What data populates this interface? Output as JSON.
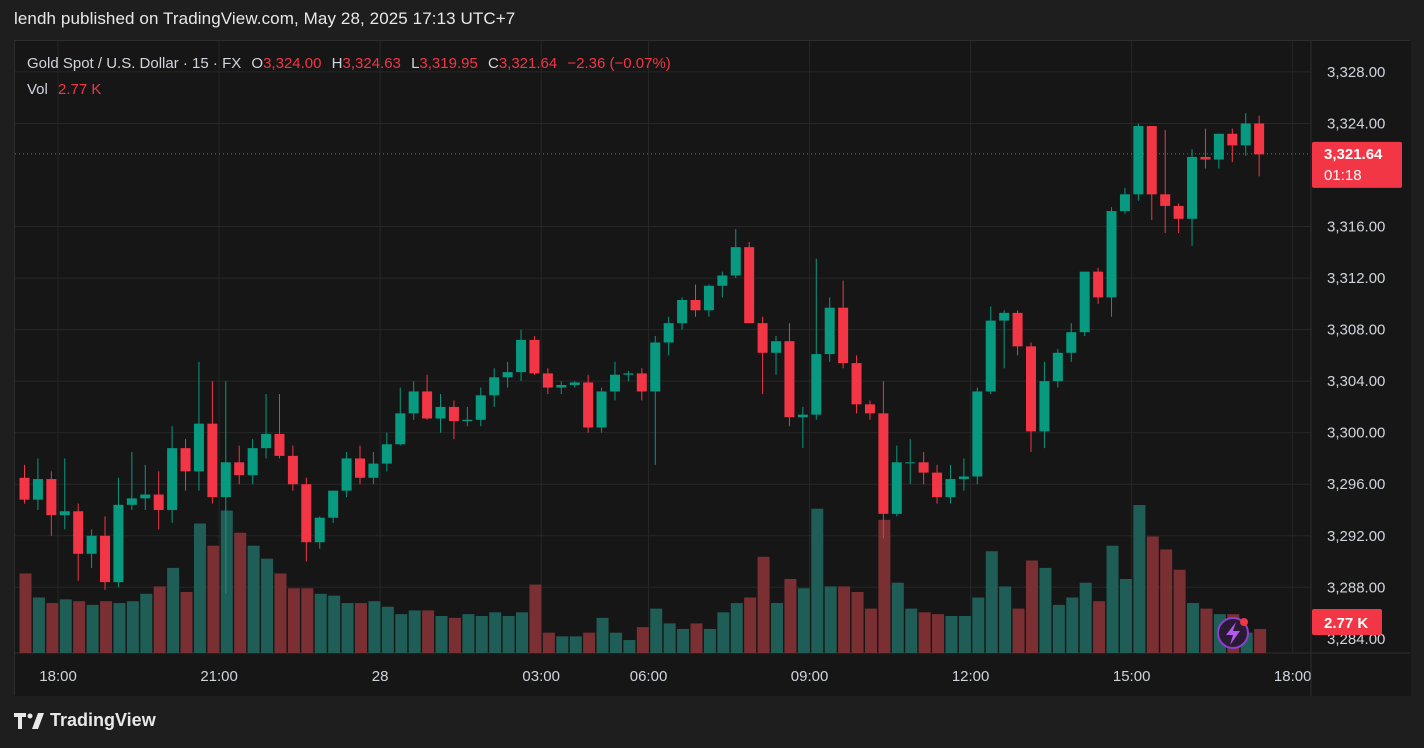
{
  "header": {
    "title": "lendh published on TradingView.com, May 28, 2025 17:13 UTC+7"
  },
  "legend": {
    "symbol": "Gold Spot / U.S. Dollar · 15 · FX",
    "o_label": "O",
    "o_value": "3,324.00",
    "h_label": "H",
    "h_value": "3,324.63",
    "l_label": "L",
    "l_value": "3,319.95",
    "c_label": "C",
    "c_value": "3,321.64",
    "change": "−2.36 (−0.07%)",
    "vol_label": "Vol",
    "vol_value": "2.77 K"
  },
  "price_badge": {
    "price": "3,321.64",
    "countdown": "01:18"
  },
  "volume_badge": "2.77 K",
  "footer": {
    "brand": "TradingView"
  },
  "colors": {
    "up": "#089981",
    "down": "#f23645",
    "vol_up": "#1f5e57",
    "vol_down": "#7a2f33",
    "background": "#161616",
    "grid": "#262626"
  },
  "chart_data": {
    "type": "candlestick",
    "symbol": "XAUUSD",
    "interval": "15",
    "y_axis": {
      "ticks": [
        3328,
        3324,
        3316,
        3312,
        3308,
        3304,
        3300,
        3296,
        3292,
        3288
      ],
      "tick_labels": [
        "3,328.00",
        "3,324.00",
        "3,316.00",
        "3,312.00",
        "3,308.00",
        "3,304.00",
        "3,300.00",
        "3,296.00",
        "3,292.00",
        "3,288.00"
      ],
      "range": [
        3282.9,
        3330.4
      ],
      "last_price": 3321.64
    },
    "x_axis": {
      "tick_labels": [
        "18:00",
        "21:00",
        "28",
        "03:00",
        "06:00",
        "09:00",
        "12:00",
        "15:00",
        "18:00"
      ],
      "tick_bar_index": [
        2.5,
        14.5,
        26.5,
        38.5,
        46.5,
        58.5,
        70.5,
        82.5,
        94.5
      ]
    },
    "bars": [
      {
        "o": 3296.5,
        "h": 3297.5,
        "l": 3294.5,
        "c": 3294.8,
        "v": 43
      },
      {
        "o": 3294.8,
        "h": 3298.0,
        "l": 3294.0,
        "c": 3296.4,
        "v": 30
      },
      {
        "o": 3296.4,
        "h": 3297.0,
        "l": 3292.0,
        "c": 3293.6,
        "v": 27
      },
      {
        "o": 3293.6,
        "h": 3298.0,
        "l": 3292.5,
        "c": 3293.9,
        "v": 29
      },
      {
        "o": 3293.9,
        "h": 3294.5,
        "l": 3288.5,
        "c": 3290.6,
        "v": 28
      },
      {
        "o": 3290.6,
        "h": 3292.5,
        "l": 3289.5,
        "c": 3292.0,
        "v": 26
      },
      {
        "o": 3292.0,
        "h": 3293.5,
        "l": 3287.8,
        "c": 3288.4,
        "v": 28
      },
      {
        "o": 3288.4,
        "h": 3296.5,
        "l": 3288.0,
        "c": 3294.4,
        "v": 27
      },
      {
        "o": 3294.4,
        "h": 3298.5,
        "l": 3294.0,
        "c": 3294.9,
        "v": 28
      },
      {
        "o": 3294.9,
        "h": 3297.5,
        "l": 3294.0,
        "c": 3295.2,
        "v": 32
      },
      {
        "o": 3295.2,
        "h": 3297.0,
        "l": 3292.5,
        "c": 3294.0,
        "v": 36
      },
      {
        "o": 3294.0,
        "h": 3300.5,
        "l": 3293.0,
        "c": 3298.8,
        "v": 46
      },
      {
        "o": 3298.8,
        "h": 3299.5,
        "l": 3295.5,
        "c": 3297.0,
        "v": 33
      },
      {
        "o": 3297.0,
        "h": 3305.5,
        "l": 3295.5,
        "c": 3300.7,
        "v": 70
      },
      {
        "o": 3300.7,
        "h": 3304.0,
        "l": 3294.5,
        "c": 3295.0,
        "v": 58
      },
      {
        "o": 3295.0,
        "h": 3304.0,
        "l": 3287.5,
        "c": 3297.7,
        "v": 77
      },
      {
        "o": 3297.7,
        "h": 3299.0,
        "l": 3296.0,
        "c": 3296.7,
        "v": 65
      },
      {
        "o": 3296.7,
        "h": 3299.5,
        "l": 3296.0,
        "c": 3298.8,
        "v": 58
      },
      {
        "o": 3298.8,
        "h": 3303.0,
        "l": 3298.0,
        "c": 3299.9,
        "v": 51
      },
      {
        "o": 3299.9,
        "h": 3303.0,
        "l": 3298.0,
        "c": 3298.2,
        "v": 43
      },
      {
        "o": 3298.2,
        "h": 3299.0,
        "l": 3295.5,
        "c": 3296.0,
        "v": 35
      },
      {
        "o": 3296.0,
        "h": 3296.5,
        "l": 3290.0,
        "c": 3291.5,
        "v": 35
      },
      {
        "o": 3291.5,
        "h": 3293.5,
        "l": 3291.0,
        "c": 3293.4,
        "v": 32
      },
      {
        "o": 3293.4,
        "h": 3295.5,
        "l": 3293.0,
        "c": 3295.5,
        "v": 31
      },
      {
        "o": 3295.5,
        "h": 3298.5,
        "l": 3295.0,
        "c": 3298.0,
        "v": 27
      },
      {
        "o": 3298.0,
        "h": 3299.0,
        "l": 3296.0,
        "c": 3296.5,
        "v": 27
      },
      {
        "o": 3296.5,
        "h": 3298.5,
        "l": 3296.0,
        "c": 3297.6,
        "v": 28
      },
      {
        "o": 3297.6,
        "h": 3300.0,
        "l": 3297.0,
        "c": 3299.1,
        "v": 25
      },
      {
        "o": 3299.1,
        "h": 3303.5,
        "l": 3299.0,
        "c": 3301.5,
        "v": 21
      },
      {
        "o": 3301.5,
        "h": 3304.0,
        "l": 3301.0,
        "c": 3303.2,
        "v": 23
      },
      {
        "o": 3303.2,
        "h": 3304.5,
        "l": 3301.0,
        "c": 3301.1,
        "v": 23
      },
      {
        "o": 3301.1,
        "h": 3303.0,
        "l": 3300.0,
        "c": 3302.0,
        "v": 20
      },
      {
        "o": 3302.0,
        "h": 3302.5,
        "l": 3299.5,
        "c": 3300.9,
        "v": 19
      },
      {
        "o": 3300.9,
        "h": 3302.0,
        "l": 3300.5,
        "c": 3301.0,
        "v": 21
      },
      {
        "o": 3301.0,
        "h": 3303.5,
        "l": 3300.5,
        "c": 3302.9,
        "v": 20
      },
      {
        "o": 3302.9,
        "h": 3305.0,
        "l": 3302.0,
        "c": 3304.3,
        "v": 22
      },
      {
        "o": 3304.3,
        "h": 3305.5,
        "l": 3303.5,
        "c": 3304.7,
        "v": 20
      },
      {
        "o": 3304.7,
        "h": 3308.0,
        "l": 3304.0,
        "c": 3307.2,
        "v": 22
      },
      {
        "o": 3307.2,
        "h": 3307.5,
        "l": 3304.5,
        "c": 3304.6,
        "v": 37
      },
      {
        "o": 3304.6,
        "h": 3305.0,
        "l": 3303.0,
        "c": 3303.5,
        "v": 11
      },
      {
        "o": 3303.5,
        "h": 3304.0,
        "l": 3303.0,
        "c": 3303.7,
        "v": 9
      },
      {
        "o": 3303.7,
        "h": 3304.0,
        "l": 3303.5,
        "c": 3303.9,
        "v": 9
      },
      {
        "o": 3303.9,
        "h": 3304.5,
        "l": 3300.0,
        "c": 3300.4,
        "v": 11
      },
      {
        "o": 3300.4,
        "h": 3303.5,
        "l": 3300.0,
        "c": 3303.2,
        "v": 19
      },
      {
        "o": 3303.2,
        "h": 3305.5,
        "l": 3302.5,
        "c": 3304.5,
        "v": 11
      },
      {
        "o": 3304.5,
        "h": 3304.8,
        "l": 3304.0,
        "c": 3304.6,
        "v": 7
      },
      {
        "o": 3304.6,
        "h": 3305.0,
        "l": 3302.5,
        "c": 3303.2,
        "v": 14
      },
      {
        "o": 3303.2,
        "h": 3307.5,
        "l": 3297.5,
        "c": 3307.0,
        "v": 24
      },
      {
        "o": 3307.0,
        "h": 3309.0,
        "l": 3306.0,
        "c": 3308.5,
        "v": 16
      },
      {
        "o": 3308.5,
        "h": 3310.5,
        "l": 3308.0,
        "c": 3310.3,
        "v": 13
      },
      {
        "o": 3310.3,
        "h": 3311.5,
        "l": 3309.0,
        "c": 3309.5,
        "v": 16
      },
      {
        "o": 3309.5,
        "h": 3311.5,
        "l": 3309.0,
        "c": 3311.4,
        "v": 13
      },
      {
        "o": 3311.4,
        "h": 3312.5,
        "l": 3310.5,
        "c": 3312.2,
        "v": 22
      },
      {
        "o": 3312.2,
        "h": 3315.8,
        "l": 3312.0,
        "c": 3314.4,
        "v": 27
      },
      {
        "o": 3314.4,
        "h": 3314.8,
        "l": 3308.5,
        "c": 3308.5,
        "v": 30
      },
      {
        "o": 3308.5,
        "h": 3309.0,
        "l": 3303.0,
        "c": 3306.2,
        "v": 52
      },
      {
        "o": 3306.2,
        "h": 3307.5,
        "l": 3304.5,
        "c": 3307.1,
        "v": 27
      },
      {
        "o": 3307.1,
        "h": 3308.5,
        "l": 3300.5,
        "c": 3301.2,
        "v": 40
      },
      {
        "o": 3301.2,
        "h": 3302.0,
        "l": 3298.8,
        "c": 3301.4,
        "v": 35
      },
      {
        "o": 3301.4,
        "h": 3313.5,
        "l": 3301.0,
        "c": 3306.1,
        "v": 78
      },
      {
        "o": 3306.1,
        "h": 3310.5,
        "l": 3305.5,
        "c": 3309.7,
        "v": 36
      },
      {
        "o": 3309.7,
        "h": 3311.8,
        "l": 3305.0,
        "c": 3305.4,
        "v": 36
      },
      {
        "o": 3305.4,
        "h": 3306.0,
        "l": 3301.5,
        "c": 3302.2,
        "v": 33
      },
      {
        "o": 3302.2,
        "h": 3302.5,
        "l": 3301.0,
        "c": 3301.5,
        "v": 24
      },
      {
        "o": 3301.5,
        "h": 3304.0,
        "l": 3291.8,
        "c": 3293.7,
        "v": 72
      },
      {
        "o": 3293.7,
        "h": 3299.0,
        "l": 3293.5,
        "c": 3297.7,
        "v": 38
      },
      {
        "o": 3297.7,
        "h": 3299.5,
        "l": 3296.0,
        "c": 3297.7,
        "v": 24
      },
      {
        "o": 3297.7,
        "h": 3298.5,
        "l": 3296.0,
        "c": 3296.9,
        "v": 22
      },
      {
        "o": 3296.9,
        "h": 3297.5,
        "l": 3294.5,
        "c": 3295.0,
        "v": 21
      },
      {
        "o": 3295.0,
        "h": 3297.5,
        "l": 3294.5,
        "c": 3296.4,
        "v": 20
      },
      {
        "o": 3296.4,
        "h": 3298.0,
        "l": 3295.5,
        "c": 3296.6,
        "v": 20
      },
      {
        "o": 3296.6,
        "h": 3303.5,
        "l": 3296.0,
        "c": 3303.2,
        "v": 30
      },
      {
        "o": 3303.2,
        "h": 3309.8,
        "l": 3303.0,
        "c": 3308.7,
        "v": 55
      },
      {
        "o": 3308.7,
        "h": 3309.5,
        "l": 3305.0,
        "c": 3309.3,
        "v": 36
      },
      {
        "o": 3309.3,
        "h": 3309.5,
        "l": 3306.0,
        "c": 3306.7,
        "v": 24
      },
      {
        "o": 3306.7,
        "h": 3307.0,
        "l": 3298.5,
        "c": 3300.1,
        "v": 50
      },
      {
        "o": 3300.1,
        "h": 3305.5,
        "l": 3298.8,
        "c": 3304.0,
        "v": 46
      },
      {
        "o": 3304.0,
        "h": 3306.5,
        "l": 3303.5,
        "c": 3306.2,
        "v": 26
      },
      {
        "o": 3306.2,
        "h": 3308.5,
        "l": 3305.5,
        "c": 3307.8,
        "v": 30
      },
      {
        "o": 3307.8,
        "h": 3312.5,
        "l": 3307.5,
        "c": 3312.5,
        "v": 38
      },
      {
        "o": 3312.5,
        "h": 3312.8,
        "l": 3310.0,
        "c": 3310.5,
        "v": 28
      },
      {
        "o": 3310.5,
        "h": 3317.5,
        "l": 3309.0,
        "c": 3317.2,
        "v": 58
      },
      {
        "o": 3317.2,
        "h": 3319.0,
        "l": 3317.0,
        "c": 3318.5,
        "v": 40
      },
      {
        "o": 3318.5,
        "h": 3324.0,
        "l": 3318.0,
        "c": 3323.8,
        "v": 80
      },
      {
        "o": 3323.8,
        "h": 3323.8,
        "l": 3316.5,
        "c": 3318.5,
        "v": 63
      },
      {
        "o": 3318.5,
        "h": 3323.5,
        "l": 3315.5,
        "c": 3317.6,
        "v": 56
      },
      {
        "o": 3317.6,
        "h": 3317.8,
        "l": 3315.5,
        "c": 3316.6,
        "v": 45
      },
      {
        "o": 3316.6,
        "h": 3322.0,
        "l": 3314.5,
        "c": 3321.4,
        "v": 27
      },
      {
        "o": 3321.4,
        "h": 3323.6,
        "l": 3320.5,
        "c": 3321.2,
        "v": 24
      },
      {
        "o": 3321.2,
        "h": 3323.2,
        "l": 3320.5,
        "c": 3323.2,
        "v": 21
      },
      {
        "o": 3323.2,
        "h": 3323.6,
        "l": 3321.0,
        "c": 3322.3,
        "v": 21
      },
      {
        "o": 3322.3,
        "h": 3324.8,
        "l": 3321.5,
        "c": 3324.0,
        "v": 11
      },
      {
        "o": 3324.0,
        "h": 3324.6,
        "l": 3319.9,
        "c": 3321.6,
        "v": 13
      }
    ]
  }
}
